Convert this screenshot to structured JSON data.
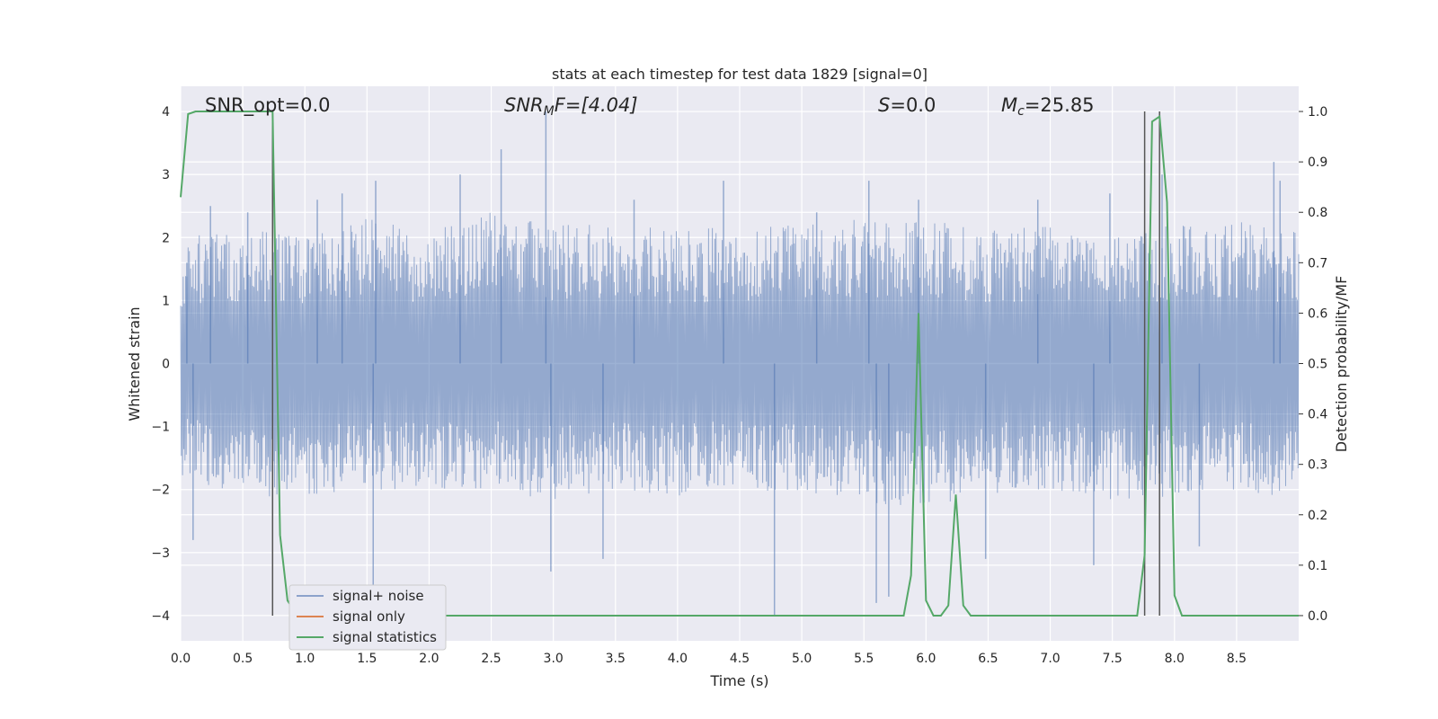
{
  "colors": {
    "plot_background": "#eaeaf2",
    "grid": "#ffffff",
    "signal_noise": "#4c72b0",
    "signal_only": "#dd8452",
    "statistics": "#55a868",
    "markers": "#555555"
  },
  "chart_data": {
    "type": "line",
    "title": "stats at each timestep for test data 1829 [signal=0]",
    "xlabel": "Time (s)",
    "ylabel_left": "Whitened strain",
    "ylabel_right": "Detection probability/MF",
    "xlim": [
      0.0,
      9.0
    ],
    "ylim_left": [
      -4.4,
      4.4
    ],
    "ylim_right": [
      -0.05,
      1.05
    ],
    "x_ticks": [
      "0.0",
      "0.5",
      "1.0",
      "1.5",
      "2.0",
      "2.5",
      "3.0",
      "3.5",
      "4.0",
      "4.5",
      "5.0",
      "5.5",
      "6.0",
      "6.5",
      "7.0",
      "7.5",
      "8.0",
      "8.5"
    ],
    "y_left_ticks": [
      "−4",
      "−3",
      "−2",
      "−1",
      "0",
      "1",
      "2",
      "3",
      "4"
    ],
    "y_right_ticks": [
      "0.0",
      "0.1",
      "0.2",
      "0.3",
      "0.4",
      "0.5",
      "0.6",
      "0.7",
      "0.8",
      "0.9",
      "1.0"
    ],
    "grid": true,
    "legend": {
      "placement": "lower-left",
      "entries": [
        "signal+ noise",
        "signal only",
        "signal statistics"
      ]
    },
    "annotations": {
      "snr_opt": "SNR_opt=0.0",
      "snr_mf_label": "SNR",
      "snr_mf_sub": "M",
      "snr_mf_rest": "F=[4.04]",
      "s_label": "S",
      "s_value": "=0.0",
      "mc_label": "M",
      "mc_sub": "c",
      "mc_value": "=25.85"
    },
    "noise_envelope": {
      "x": [
        0.0,
        0.5,
        1.0,
        1.5,
        2.0,
        2.5,
        3.0,
        3.5,
        4.0,
        4.5,
        5.0,
        5.5,
        6.0,
        6.5,
        7.0,
        7.5,
        8.0,
        8.5,
        9.0
      ],
      "upper": [
        2.0,
        2.2,
        2.0,
        2.3,
        2.1,
        2.4,
        2.2,
        2.3,
        2.1,
        2.2,
        2.2,
        2.3,
        2.3,
        2.1,
        2.2,
        2.1,
        2.2,
        2.3,
        2.1
      ],
      "lower": [
        -1.9,
        -2.1,
        -2.2,
        -2.0,
        -2.1,
        -2.0,
        -2.2,
        -2.0,
        -2.1,
        -2.0,
        -2.1,
        -2.2,
        -2.3,
        -2.1,
        -2.0,
        -2.2,
        -2.1,
        -2.0,
        -2.2
      ],
      "spikes_up": [
        [
          0.05,
          1.6
        ],
        [
          0.24,
          2.5
        ],
        [
          0.54,
          2.4
        ],
        [
          1.1,
          2.6
        ],
        [
          1.3,
          2.7
        ],
        [
          1.57,
          2.9
        ],
        [
          2.25,
          3.0
        ],
        [
          2.58,
          3.4
        ],
        [
          2.94,
          4.0
        ],
        [
          3.65,
          2.6
        ],
        [
          4.37,
          2.9
        ],
        [
          5.12,
          2.4
        ],
        [
          5.54,
          2.9
        ],
        [
          5.94,
          2.6
        ],
        [
          6.9,
          2.6
        ],
        [
          7.48,
          2.7
        ],
        [
          7.9,
          3.0
        ],
        [
          8.8,
          3.2
        ],
        [
          8.85,
          2.9
        ]
      ],
      "spikes_down": [
        [
          0.1,
          -2.8
        ],
        [
          1.55,
          -3.8
        ],
        [
          2.98,
          -3.3
        ],
        [
          3.4,
          -3.1
        ],
        [
          4.78,
          -4.0
        ],
        [
          5.6,
          -3.8
        ],
        [
          5.7,
          -3.7
        ],
        [
          6.48,
          -3.1
        ],
        [
          7.35,
          -3.2
        ],
        [
          8.2,
          -2.9
        ]
      ]
    },
    "series": [
      {
        "name": "signal statistics",
        "x": [
          0.0,
          0.06,
          0.12,
          0.2,
          0.3,
          0.4,
          0.5,
          0.6,
          0.7,
          0.74,
          0.8,
          0.86,
          0.94,
          1.0,
          2.0,
          3.0,
          4.0,
          5.0,
          5.82,
          5.88,
          5.94,
          6.0,
          6.06,
          6.12,
          6.18,
          6.24,
          6.3,
          6.36,
          6.5,
          7.0,
          7.5,
          7.7,
          7.76,
          7.82,
          7.88,
          7.94,
          8.0,
          8.06,
          8.2,
          8.5,
          9.0
        ],
        "values": [
          0.83,
          0.995,
          1.0,
          1.0,
          1.0,
          1.0,
          1.0,
          1.0,
          1.0,
          1.0,
          0.16,
          0.03,
          0.0,
          0.0,
          0.0,
          0.0,
          0.0,
          0.0,
          0.0,
          0.08,
          0.6,
          0.03,
          0.0,
          0.0,
          0.02,
          0.24,
          0.02,
          0.0,
          0.0,
          0.0,
          0.0,
          0.0,
          0.12,
          0.98,
          0.99,
          0.82,
          0.04,
          0.0,
          0.0,
          0.0,
          0.0
        ]
      }
    ],
    "markers_x": [
      0.74,
      7.76,
      7.88
    ]
  }
}
